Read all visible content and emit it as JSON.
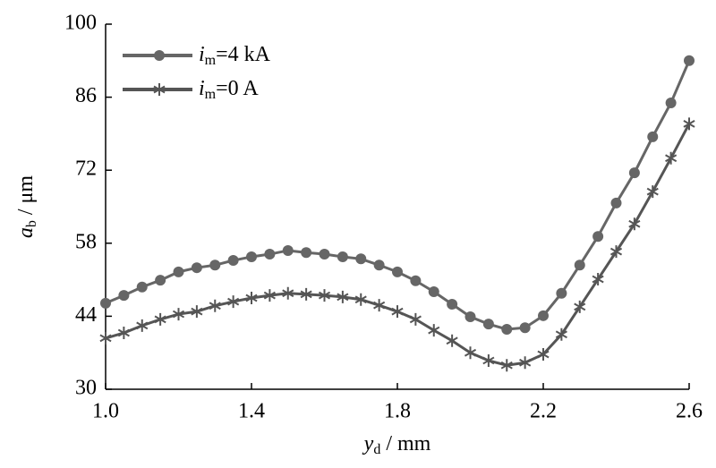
{
  "chart_data": {
    "type": "line",
    "xlabel": "yd / mm",
    "ylabel": "ab / μm",
    "x": [
      1.0,
      1.05,
      1.1,
      1.15,
      1.2,
      1.25,
      1.3,
      1.35,
      1.4,
      1.45,
      1.5,
      1.55,
      1.6,
      1.65,
      1.7,
      1.75,
      1.8,
      1.85,
      1.9,
      1.95,
      2.0,
      2.05,
      2.1,
      2.15,
      2.2,
      2.25,
      2.3,
      2.35,
      2.4,
      2.45,
      2.5,
      2.55,
      2.6
    ],
    "series": [
      {
        "name": "im=4 kA",
        "color": "#666666",
        "marker": "circle",
        "values": [
          46.5,
          48.0,
          49.6,
          50.9,
          52.5,
          53.3,
          53.8,
          54.7,
          55.4,
          55.9,
          56.6,
          56.2,
          55.9,
          55.4,
          55.0,
          53.8,
          52.5,
          50.8,
          48.7,
          46.3,
          43.9,
          42.5,
          41.5,
          41.8,
          44.1,
          48.4,
          53.8,
          59.3,
          65.7,
          71.5,
          78.4,
          84.9,
          93.0
        ]
      },
      {
        "name": "im=0 A",
        "color": "#555555",
        "marker": "asterisk",
        "values": [
          39.8,
          40.8,
          42.2,
          43.4,
          44.4,
          44.9,
          46.0,
          46.8,
          47.5,
          48.0,
          48.4,
          48.2,
          48.0,
          47.7,
          47.2,
          46.1,
          44.9,
          43.4,
          41.3,
          39.3,
          37.0,
          35.5,
          34.6,
          35.1,
          36.7,
          40.5,
          45.8,
          51.1,
          56.4,
          61.7,
          67.9,
          74.3,
          80.9
        ]
      }
    ],
    "xlim": [
      1.0,
      2.6
    ],
    "xticks": [
      {
        "value": 1.0,
        "label": "1.0"
      },
      1.4,
      1.8,
      2.2,
      2.6
    ],
    "ylim": [
      30,
      100
    ],
    "yticks": [
      30,
      44,
      58,
      72,
      86,
      100
    ],
    "grid": false,
    "legend": "upper left"
  }
}
